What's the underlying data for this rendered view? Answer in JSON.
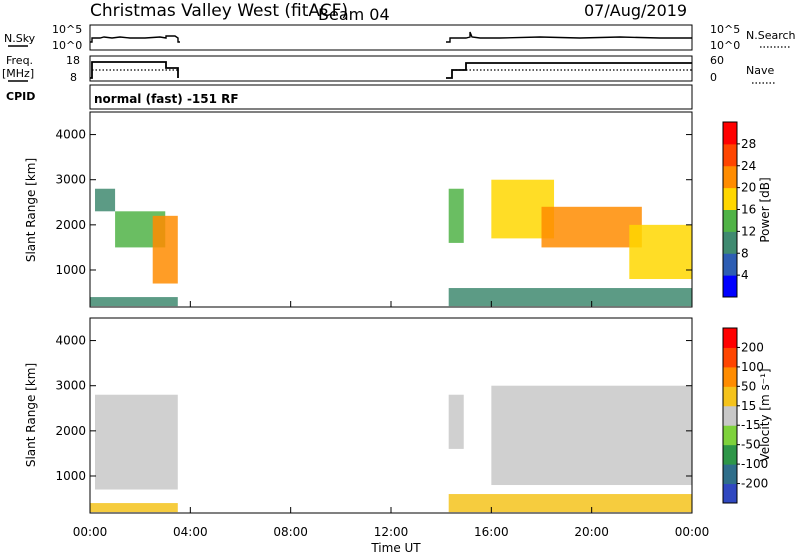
{
  "header": {
    "title": "Christmas Valley West (fitACF)",
    "beam": "Beam 04",
    "date": "07/Aug/2019"
  },
  "status": {
    "nsky_label": "N.Sky",
    "nsky_ticks": [
      "10^5",
      "10^0"
    ],
    "nsearch_label": "N.Search",
    "nsearch_ticks": [
      "10^5",
      "10^0"
    ],
    "freq_label": "Freq.",
    "freq_unit": "[MHz]",
    "freq_ticks": [
      "18",
      "8"
    ],
    "nave_label": "Nave",
    "nave_ticks": [
      "60",
      "0"
    ],
    "cpid_label": "CPID",
    "cpid_value": "normal (fast) -151 RF"
  },
  "colors": {
    "power": [
      "#0000ff",
      "#2d5db3",
      "#3f8a70",
      "#50b346",
      "#ffd700",
      "#ff8c00",
      "#ff4500",
      "#ff0000"
    ],
    "velocity": [
      "#3048c0",
      "#2f6e8a",
      "#2e9648",
      "#7ed23c",
      "#c8c8c8",
      "#f5c31c",
      "#ff8c00",
      "#ff4500",
      "#ff0000"
    ]
  },
  "chart_data": [
    {
      "type": "heatmap",
      "title": "Power",
      "xlabel": "Time UT",
      "ylabel": "Slant Range [km]",
      "x_ticks": [
        "00:00",
        "04:00",
        "08:00",
        "12:00",
        "16:00",
        "20:00",
        "00:00"
      ],
      "y_ticks": [
        4000,
        3000,
        2000,
        1000
      ],
      "xlim_hours": [
        0,
        24
      ],
      "ylim_km": [
        180,
        4500
      ],
      "colorbar_label": "Power [dB]",
      "colorbar_ticks": [
        "28",
        "24",
        "20",
        "16",
        "12",
        "8",
        "4"
      ],
      "colorbar_range": [
        0,
        30
      ],
      "regions": [
        {
          "t0": 0.2,
          "t1": 1.0,
          "r0": 2300,
          "r1": 2800,
          "value": 10
        },
        {
          "t0": 1.0,
          "t1": 3.0,
          "r0": 1500,
          "r1": 2300,
          "value": 12
        },
        {
          "t0": 2.5,
          "t1": 3.5,
          "r0": 700,
          "r1": 2200,
          "value": 20
        },
        {
          "t0": 14.3,
          "t1": 14.9,
          "r0": 1600,
          "r1": 2800,
          "value": 12
        },
        {
          "t0": 16.0,
          "t1": 18.5,
          "r0": 1700,
          "r1": 3000,
          "value": 18
        },
        {
          "t0": 18.0,
          "t1": 22.0,
          "r0": 1500,
          "r1": 2400,
          "value": 22
        },
        {
          "t0": 21.5,
          "t1": 24.0,
          "r0": 800,
          "r1": 2000,
          "value": 16
        },
        {
          "t0": 14.3,
          "t1": 24.0,
          "r0": 200,
          "r1": 600,
          "value": 8
        },
        {
          "t0": 0.0,
          "t1": 3.5,
          "r0": 200,
          "r1": 400,
          "value": 8
        }
      ]
    },
    {
      "type": "heatmap",
      "title": "Velocity",
      "xlabel": "Time UT",
      "ylabel": "Slant Range [km]",
      "x_ticks": [
        "00:00",
        "04:00",
        "08:00",
        "12:00",
        "16:00",
        "20:00",
        "00:00"
      ],
      "y_ticks": [
        4000,
        3000,
        2000,
        1000
      ],
      "xlim_hours": [
        0,
        24
      ],
      "ylim_km": [
        180,
        4500
      ],
      "colorbar_label": "Velocity [m s⁻¹]",
      "colorbar_ticks": [
        "200",
        "100",
        "50",
        "15",
        "-15",
        "-50",
        "-100",
        "-200"
      ],
      "colorbar_range": [
        -250,
        250
      ],
      "regions": [
        {
          "t0": 0.2,
          "t1": 3.5,
          "r0": 700,
          "r1": 2800,
          "value": 0
        },
        {
          "t0": 14.3,
          "t1": 14.9,
          "r0": 1600,
          "r1": 2800,
          "value": 0
        },
        {
          "t0": 16.0,
          "t1": 24.0,
          "r0": 800,
          "r1": 3000,
          "value": 0
        },
        {
          "t0": 14.3,
          "t1": 24.0,
          "r0": 200,
          "r1": 600,
          "value": 60
        },
        {
          "t0": 0.0,
          "t1": 3.5,
          "r0": 200,
          "r1": 400,
          "value": 60
        }
      ]
    }
  ]
}
